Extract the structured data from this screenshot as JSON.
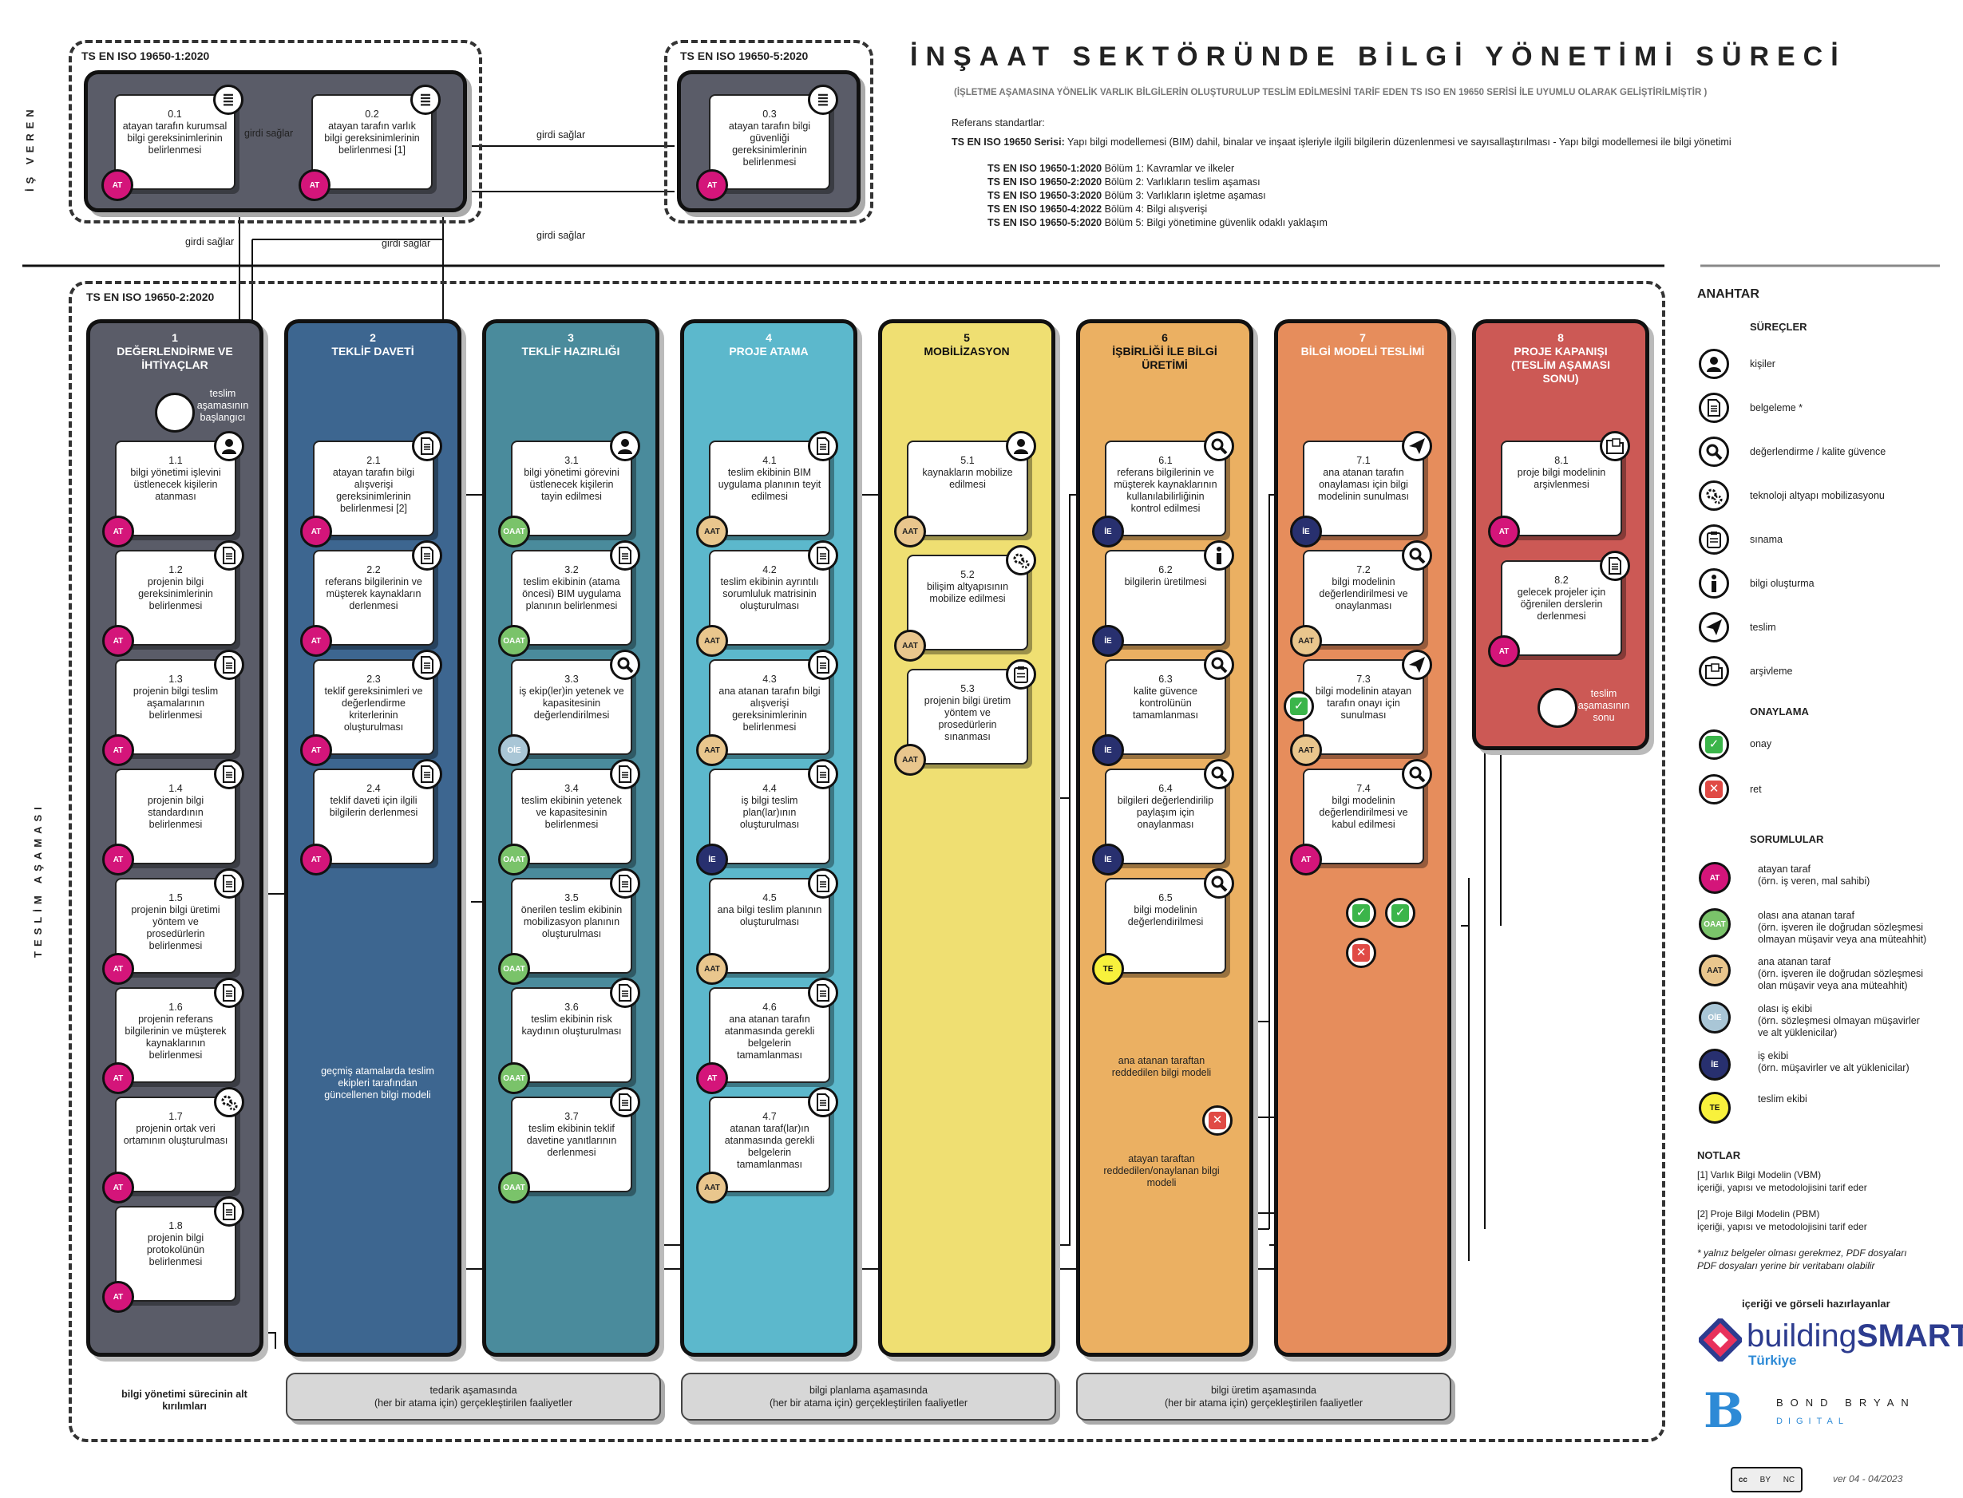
{
  "title": "İNŞAAT SEKTÖRÜNDE BİLGİ YÖNETİMİ SÜRECİ",
  "subtitle": "(İŞLETME AŞAMASINA YÖNELİK VARLIK BİLGİLERİN OLUŞTURULUP TESLİM EDİLMESİNİ TARİF EDEN TS ISO EN 19650 SERİSİ İLE UYUMLU OLARAK GELİŞTİRİLMİŞTİR )",
  "ref_title": "Referans standartlar:",
  "series_label": "TS EN ISO 19650 Serisi:",
  "series_text": " Yapı bilgi modellemesi (BIM) dahil, binalar ve inşaat işleriyle ilgili bilgilerin düzenlenmesi ve sayısallaştırılması - Yapı bilgi modellemesi ile bilgi yönetimi",
  "standards": [
    {
      "code": "TS EN ISO 19650-1:2020",
      "text": " Bölüm 1: Kavramlar ve ilkeler"
    },
    {
      "code": "TS EN ISO 19650-2:2020",
      "text": " Bölüm 2: Varlıkların teslim aşaması"
    },
    {
      "code": "TS EN ISO 19650-3:2020",
      "text": " Bölüm 3: Varlıkların işletme aşaması"
    },
    {
      "code": "TS EN ISO 19650-4:2022",
      "text": " Bölüm 4: Bilgi alışverişi"
    },
    {
      "code": "TS EN ISO 19650-5:2020",
      "text": " Bölüm 5: Bilgi yönetimine güvenlik odaklı yaklaşım"
    }
  ],
  "side_labels": {
    "employer": "İŞ VEREN",
    "delivery": "TESLİM AŞAMASI"
  },
  "groups": {
    "g1": "TS EN ISO 19650-1:2020",
    "g5": "TS EN ISO 19650-5:2020",
    "g2": "TS EN ISO 19650-2:2020"
  },
  "top_cards": [
    {
      "id": "0.1",
      "text": "atayan tarafın kurumsal bilgi gereksinimlerinin belirlenmesi",
      "badge": "AT"
    },
    {
      "id": "0.2",
      "text": "atayan tarafın varlık bilgi gereksinimlerinin belirlenmesi [1]",
      "badge": "AT"
    },
    {
      "id": "0.3",
      "text": "atayan tarafın bilgi güvenliği gereksinimlerinin belirlenmesi",
      "badge": "AT"
    }
  ],
  "flow_labels": {
    "girdi1": "girdi sağlar",
    "girdi2": "girdi sağlar",
    "girdi3": "girdi sağlar",
    "girdi4": "girdi sağlar",
    "girdi5": "girdi sağlar"
  },
  "columns": [
    {
      "num": "1",
      "title": "DEĞERLENDİRME VE İHTİYAÇLAR",
      "color": "#5a5c68"
    },
    {
      "num": "2",
      "title": "TEKLİF DAVETİ",
      "color": "#3d6690"
    },
    {
      "num": "3",
      "title": "TEKLİF HAZIRLIĞI",
      "color": "#4a8b9c"
    },
    {
      "num": "4",
      "title": "PROJE ATAMA",
      "color": "#5cb8cc"
    },
    {
      "num": "5",
      "title": "MOBİLİZASYON",
      "color": "#efdf72"
    },
    {
      "num": "6",
      "title": "İŞBİRLİĞİ İLE BİLGİ ÜRETİMİ",
      "color": "#ebb062"
    },
    {
      "num": "7",
      "title": "BİLGİ MODELİ TESLİMİ",
      "color": "#e68d5c"
    },
    {
      "num": "8",
      "title": "PROJE KAPANIŞI (TESLİM AŞAMASI SONU)",
      "color": "#cc5955"
    }
  ],
  "start_label": "teslim aşamasının başlangıcı",
  "end_label": "teslim aşamasının sonu",
  "cards": {
    "c1": [
      {
        "id": "1.1",
        "text": "bilgi yönetimi işlevini üstlenecek kişilerin atanması",
        "badge": "AT",
        "icon": "person"
      },
      {
        "id": "1.2",
        "text": "projenin bilgi gereksinimlerinin belirlenmesi",
        "badge": "AT",
        "icon": "doc"
      },
      {
        "id": "1.3",
        "text": "projenin bilgi teslim aşamalarının belirlenmesi",
        "badge": "AT",
        "icon": "doc"
      },
      {
        "id": "1.4",
        "text": "projenin bilgi standardının belirlenmesi",
        "badge": "AT",
        "icon": "doc"
      },
      {
        "id": "1.5",
        "text": "projenin bilgi üretimi yöntem ve prosedürlerin belirlenmesi",
        "badge": "AT",
        "icon": "doc"
      },
      {
        "id": "1.6",
        "text": "projenin referans bilgilerinin ve müşterek kaynaklarının belirlenmesi",
        "badge": "AT",
        "icon": "doc"
      },
      {
        "id": "1.7",
        "text": "projenin ortak veri ortamının oluşturulması",
        "badge": "AT",
        "icon": "gear"
      },
      {
        "id": "1.8",
        "text": "projenin bilgi protokolünün belirlenmesi",
        "badge": "AT",
        "icon": "doc"
      }
    ],
    "c2": [
      {
        "id": "2.1",
        "text": "atayan tarafın bilgi alışverişi gereksinimlerinin belirlenmesi [2]",
        "badge": "AT",
        "icon": "doc"
      },
      {
        "id": "2.2",
        "text": "referans bilgilerinin ve müşterek kaynakların derlenmesi",
        "badge": "AT",
        "icon": "doc"
      },
      {
        "id": "2.3",
        "text": "teklif gereksinimleri ve değerlendirme kriterlerinin oluşturulması",
        "badge": "AT",
        "icon": "doc"
      },
      {
        "id": "2.4",
        "text": "teklif daveti için ilgili bilgilerin derlenmesi",
        "badge": "AT",
        "icon": "doc"
      }
    ],
    "c3": [
      {
        "id": "3.1",
        "text": "bilgi yönetimi görevini üstlenecek kişilerin tayin edilmesi",
        "badge": "OAAT",
        "icon": "person"
      },
      {
        "id": "3.2",
        "text": "teslim ekibinin (atama öncesi) BIM uygulama planının belirlenmesi",
        "badge": "OAAT",
        "icon": "doc"
      },
      {
        "id": "3.3",
        "text": "iş ekip(ler)in yetenek ve kapasitesinin değerlendirilmesi",
        "badge": "OİE",
        "icon": "search"
      },
      {
        "id": "3.4",
        "text": "teslim ekibinin yetenek ve kapasitesinin belirlenmesi",
        "badge": "OAAT",
        "icon": "doc"
      },
      {
        "id": "3.5",
        "text": "önerilen teslim ekibinin mobilizasyon planının oluşturulması",
        "badge": "OAAT",
        "icon": "doc"
      },
      {
        "id": "3.6",
        "text": "teslim ekibinin risk kaydının oluşturulması",
        "badge": "OAAT",
        "icon": "doc"
      },
      {
        "id": "3.7",
        "text": "teslim ekibinin teklif davetine yanıtlarının derlenmesi",
        "badge": "OAAT",
        "icon": "doc"
      }
    ],
    "c4": [
      {
        "id": "4.1",
        "text": "teslim ekibinin BIM uygulama planının teyit edilmesi",
        "badge": "AAT",
        "icon": "doc"
      },
      {
        "id": "4.2",
        "text": "teslim ekibinin ayrıntılı sorumluluk matrisinin oluşturulması",
        "badge": "AAT",
        "icon": "doc"
      },
      {
        "id": "4.3",
        "text": "ana atanan tarafın bilgi alışverişi gereksinimlerinin belirlenmesi",
        "badge": "AAT",
        "icon": "doc"
      },
      {
        "id": "4.4",
        "text": "iş bilgi teslim plan(lar)ının oluşturulması",
        "badge": "İE",
        "icon": "doc"
      },
      {
        "id": "4.5",
        "text": "ana bilgi teslim planının oluşturulması",
        "badge": "AAT",
        "icon": "doc"
      },
      {
        "id": "4.6",
        "text": "ana atanan tarafın atanmasında gerekli belgelerin tamamlanması",
        "badge": "AT",
        "icon": "doc"
      },
      {
        "id": "4.7",
        "text": "atanan taraf(lar)ın atanmasında gerekli belgelerin tamamlanması",
        "badge": "AAT",
        "icon": "doc"
      }
    ],
    "c5": [
      {
        "id": "5.1",
        "text": "kaynakların mobilize edilmesi",
        "badge": "AAT",
        "icon": "person"
      },
      {
        "id": "5.2",
        "text": "bilişim altyapısının mobilize edilmesi",
        "badge": "AAT",
        "icon": "gear"
      },
      {
        "id": "5.3",
        "text": "projenin bilgi üretim yöntem ve prosedürlerin sınanması",
        "badge": "AAT",
        "icon": "clip"
      }
    ],
    "c6": [
      {
        "id": "6.1",
        "text": "referans bilgilerinin ve müşterek kaynaklarının kullanılabilirliğinin kontrol edilmesi",
        "badge": "İE",
        "icon": "search"
      },
      {
        "id": "6.2",
        "text": "bilgilerin üretilmesi",
        "badge": "İE",
        "icon": "info"
      },
      {
        "id": "6.3",
        "text": "kalite güvence kontrolünün tamamlanması",
        "badge": "İE",
        "icon": "search"
      },
      {
        "id": "6.4",
        "text": "bilgileri değerlendirilip paylaşım için onaylanması",
        "badge": "İE",
        "icon": "search"
      },
      {
        "id": "6.5",
        "text": "bilgi modelinin değerlendirilmesi",
        "badge": "TE",
        "icon": "search"
      }
    ],
    "c7": [
      {
        "id": "7.1",
        "text": "ana atanan tarafın onaylaması için bilgi modelinin sunulması",
        "badge": "İE",
        "icon": "send"
      },
      {
        "id": "7.2",
        "text": "bilgi modelinin değerlendirilmesi ve onaylanması",
        "badge": "AAT",
        "icon": "search"
      },
      {
        "id": "7.3",
        "text": "bilgi modelinin atayan tarafın onayı için sunulması",
        "badge": "AAT",
        "icon": "send"
      },
      {
        "id": "7.4",
        "text": "bilgi modelinin değerlendirilmesi ve kabul edilmesi",
        "badge": "AT",
        "icon": "search"
      }
    ],
    "c8": [
      {
        "id": "8.1",
        "text": "proje bilgi modelinin arşivlenmesi",
        "badge": "AT",
        "icon": "folder"
      },
      {
        "id": "8.2",
        "text": "gelecek projeler için öğrenilen derslerin derlenmesi",
        "badge": "AT",
        "icon": "doc"
      }
    ]
  },
  "annotations": {
    "past": "geçmiş atamalarda teslim ekipleri tarafından güncellenen bilgi modeli",
    "rej_main": "ana atanan taraftan reddedilen bilgi modeli",
    "rej_at": "atayan taraftan reddedilen/onaylanan bilgi modeli",
    "sub": "bilgi yönetimi sürecinin alt kırılımları"
  },
  "pills": [
    {
      "text1": "tedarik aşamasında",
      "text2": "(her bir atama için) gerçekleştirilen faaliyetler"
    },
    {
      "text1": "bilgi planlama aşamasında",
      "text2": "(her bir atama için) gerçekleştirilen faaliyetler"
    },
    {
      "text1": "bilgi üretim aşamasında",
      "text2": "(her bir atama için) gerçekleştirilen faaliyetler"
    }
  ],
  "legend": {
    "title": "ANAHTAR",
    "processes_title": "SÜREÇLER",
    "processes": [
      {
        "icon": "person",
        "label": "kişiler"
      },
      {
        "icon": "doc",
        "label": "belgeleme *"
      },
      {
        "icon": "search",
        "label": "değerlendirme / kalite güvence"
      },
      {
        "icon": "gear",
        "label": "teknoloji altyapı mobilizasyonu"
      },
      {
        "icon": "clip",
        "label": "sınama"
      },
      {
        "icon": "info",
        "label": "bilgi oluşturma"
      },
      {
        "icon": "send",
        "label": "teslim"
      },
      {
        "icon": "folder",
        "label": "arşivleme"
      }
    ],
    "approval_title": "ONAYLAMA",
    "approve": "onay",
    "reject": "ret",
    "roles_title": "SORUMLULAR",
    "roles": [
      {
        "badge": "AT",
        "l1": "atayan taraf",
        "l2": "(örn. iş veren, mal sahibi)",
        "l3": ""
      },
      {
        "badge": "OAAT",
        "l1": "olası ana atanan taraf",
        "l2": "(örn. işveren ile doğrudan sözleşmesi",
        "l3": "olmayan müşavir veya ana müteahhit)"
      },
      {
        "badge": "AAT",
        "l1": "ana atanan taraf",
        "l2": "(örn. işveren ile doğrudan sözleşmesi",
        "l3": "olan müşavir veya ana müteahhit)"
      },
      {
        "badge": "OİE",
        "l1": "olası iş ekibi",
        "l2": "(örn. sözleşmesi olmayan müşavirler",
        "l3": "ve alt yüklenicilar)"
      },
      {
        "badge": "İE",
        "l1": "iş ekibi",
        "l2": "(örn. müşavirler ve alt yüklenicilar)",
        "l3": ""
      },
      {
        "badge": "TE",
        "l1": "teslim ekibi",
        "l2": "",
        "l3": ""
      }
    ],
    "notes_title": "NOTLAR",
    "note1a": "[1] Varlık Bilgi Modelin (VBM)",
    "note1b": "içeriği, yapısı ve metodolojisini tarif eder",
    "note2a": "[2] Proje Bilgi Modelin (PBM)",
    "note2b": "içeriği, yapısı ve metodolojisini tarif eder",
    "note3a": "* yalnız belgeler olması gerekmez, PDF dosyaları",
    "note3b": "PDF dosyaları yerine bir veritabanı olabilir",
    "credits": "içeriği ve görseli hazırlayanlar",
    "bsmart1": "building",
    "bsmart2": "SMART",
    "bsmart3": "Türkiye",
    "bb1": "BOND BRYAN",
    "bb2": "DIGITAL",
    "cc": "cc",
    "cc_by": "BY",
    "cc_nc": "NC",
    "version": "ver 04 - 04/2023"
  }
}
